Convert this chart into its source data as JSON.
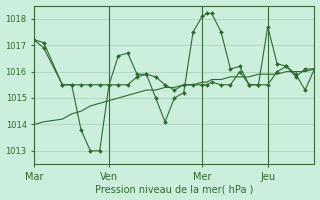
{
  "bg_color": "#cceedd",
  "grid_color": "#aaccbb",
  "line_color": "#2d6a2d",
  "marker_color": "#2d6a2d",
  "xlabel": "Pression niveau de la mer( hPa )",
  "xlabel_color": "#2d6a2d",
  "tick_color": "#2d6a2d",
  "ylim": [
    1012.5,
    1018.5
  ],
  "yticks": [
    1013,
    1014,
    1015,
    1016,
    1017,
    1018
  ],
  "xlim": [
    0,
    30
  ],
  "day_labels": [
    "Mar",
    "Ven",
    "Mer",
    "Jeu"
  ],
  "day_positions": [
    0,
    8,
    18,
    25
  ],
  "vlines_x": [
    0,
    8,
    18,
    25
  ],
  "series1_x": [
    0,
    1,
    3,
    4,
    5,
    6,
    7,
    8,
    9,
    10,
    11,
    12,
    13,
    14,
    15,
    16,
    17,
    18,
    18.5,
    19,
    20,
    21,
    22,
    23,
    24,
    25,
    26,
    27,
    28,
    29,
    30
  ],
  "series1_y": [
    1017.2,
    1017.1,
    1015.5,
    1015.5,
    1013.8,
    1013.0,
    1013.0,
    1015.5,
    1016.6,
    1016.7,
    1015.9,
    1015.9,
    1015.0,
    1014.1,
    1015.0,
    1015.2,
    1017.5,
    1018.1,
    1018.2,
    1018.2,
    1017.5,
    1016.1,
    1016.2,
    1015.5,
    1015.5,
    1017.7,
    1016.3,
    1016.2,
    1015.9,
    1015.3,
    1016.1
  ],
  "series2_x": [
    0,
    1,
    3,
    4,
    5,
    6,
    7,
    8,
    9,
    10,
    11,
    12,
    13,
    14,
    15,
    16,
    17,
    18,
    18.5,
    19,
    20,
    21,
    22,
    23,
    24,
    25,
    26,
    27,
    28,
    29,
    30
  ],
  "series2_y": [
    1017.2,
    1016.9,
    1015.5,
    1015.5,
    1015.5,
    1015.5,
    1015.5,
    1015.5,
    1015.5,
    1015.5,
    1015.8,
    1015.9,
    1015.8,
    1015.5,
    1015.3,
    1015.5,
    1015.5,
    1015.5,
    1015.5,
    1015.6,
    1015.5,
    1015.5,
    1016.0,
    1015.5,
    1015.5,
    1015.5,
    1016.0,
    1016.2,
    1015.8,
    1016.1,
    1016.1
  ],
  "series3_x": [
    0,
    1,
    3,
    4,
    5,
    6,
    7,
    8,
    9,
    10,
    11,
    12,
    13,
    14,
    15,
    16,
    17,
    18,
    18.5,
    19,
    20,
    21,
    22,
    23,
    24,
    25,
    26,
    27,
    28,
    29,
    30
  ],
  "series3_y": [
    1014.0,
    1014.1,
    1014.2,
    1014.4,
    1014.5,
    1014.7,
    1014.8,
    1014.9,
    1015.0,
    1015.1,
    1015.2,
    1015.3,
    1015.3,
    1015.4,
    1015.4,
    1015.5,
    1015.5,
    1015.6,
    1015.6,
    1015.7,
    1015.7,
    1015.8,
    1015.8,
    1015.8,
    1015.9,
    1015.9,
    1015.9,
    1016.0,
    1016.0,
    1016.0,
    1016.1
  ]
}
